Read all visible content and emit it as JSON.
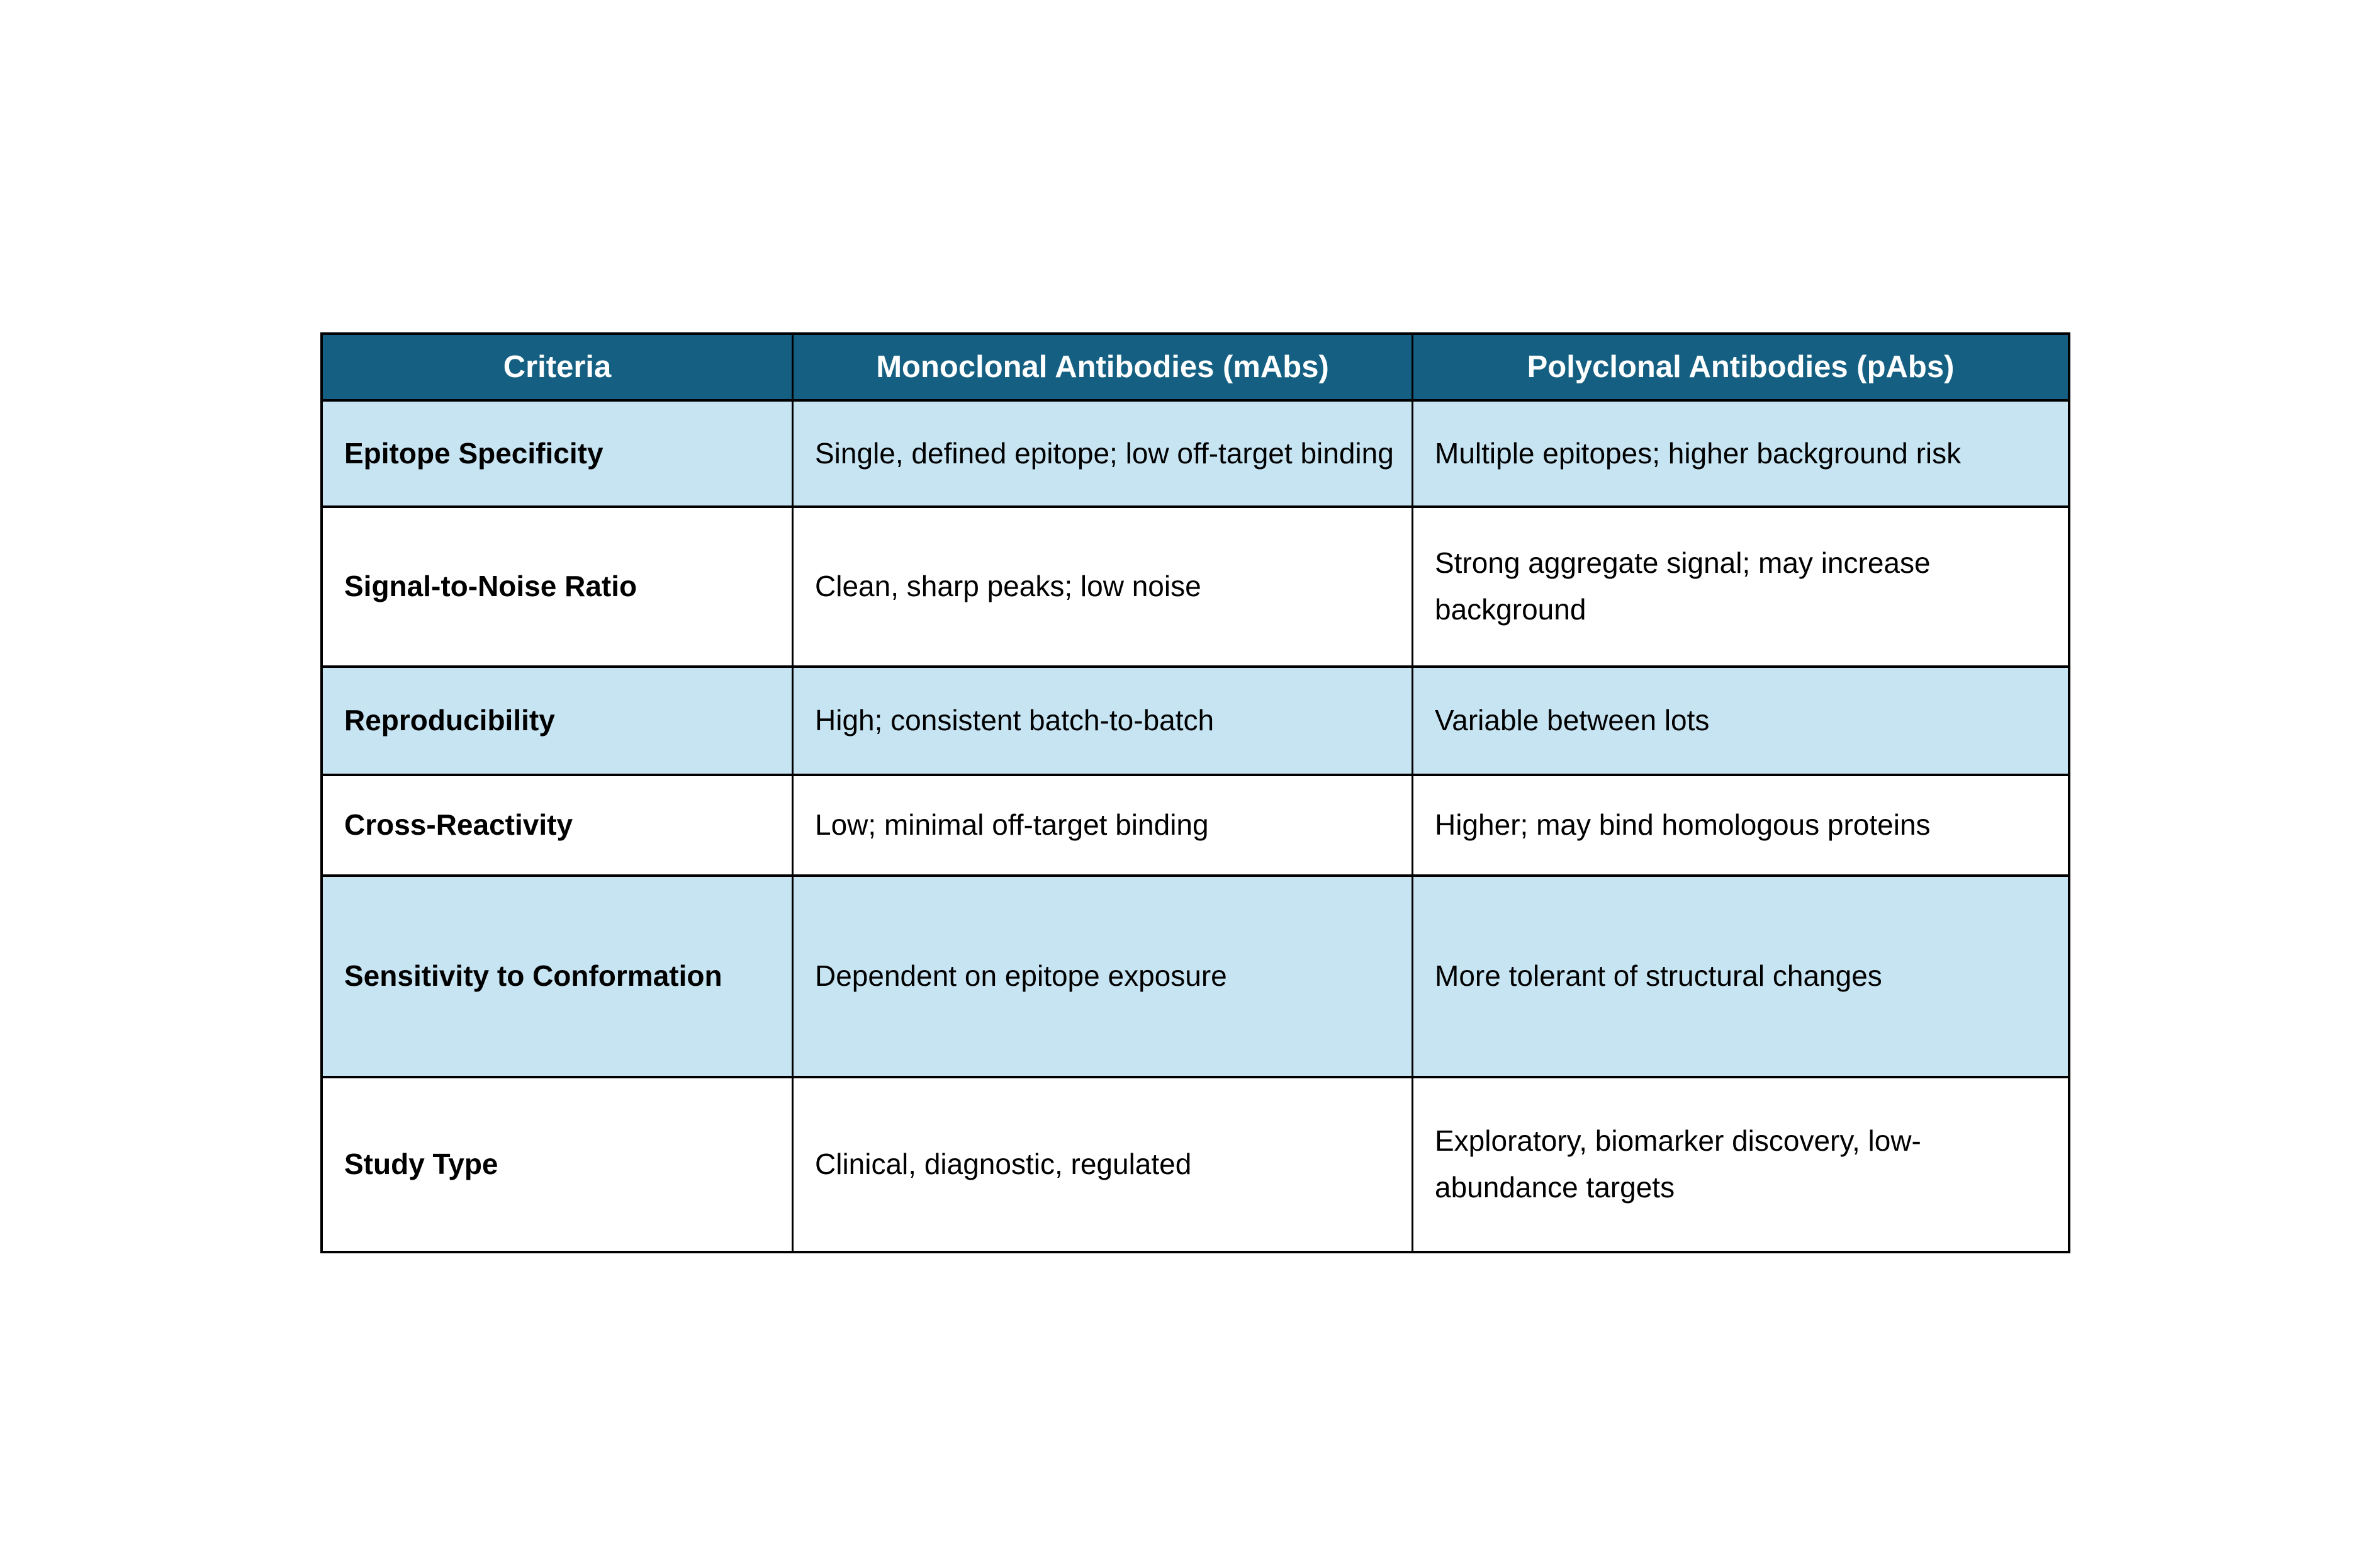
{
  "table": {
    "header": [
      "Criteria",
      "Monoclonal Antibodies (mAbs)",
      "Polyclonal Antibodies (pAbs)"
    ],
    "rows": [
      {
        "criteria": "Epitope Specificity",
        "mabs": "Single, defined epitope; low off-target binding",
        "pabs": "Multiple epitopes; higher background risk"
      },
      {
        "criteria": "Signal-to-Noise Ratio",
        "mabs": "Clean, sharp peaks; low noise",
        "pabs": "Strong aggregate signal; may increase background"
      },
      {
        "criteria": "Reproducibility",
        "mabs": "High; consistent batch-to-batch",
        "pabs": "Variable between lots"
      },
      {
        "criteria": "Cross-Reactivity",
        "mabs": "Low; minimal off-target binding",
        "pabs": "Higher; may bind homologous proteins"
      },
      {
        "criteria": "Sensitivity to Conformation",
        "mabs": "Dependent on epitope exposure",
        "pabs": "More tolerant of structural changes"
      },
      {
        "criteria": "Study Type",
        "mabs": "Clinical, diagnostic, regulated",
        "pabs": "Exploratory, biomarker discovery, low-abundance targets"
      }
    ],
    "colors": {
      "header_bg": "#156082",
      "header_text": "#FFFFFF",
      "shaded_row_bg": "#C7E4F3",
      "plain_row_bg": "#FFFFFF",
      "grid_border": "#000000",
      "body_text": "#000000"
    }
  }
}
